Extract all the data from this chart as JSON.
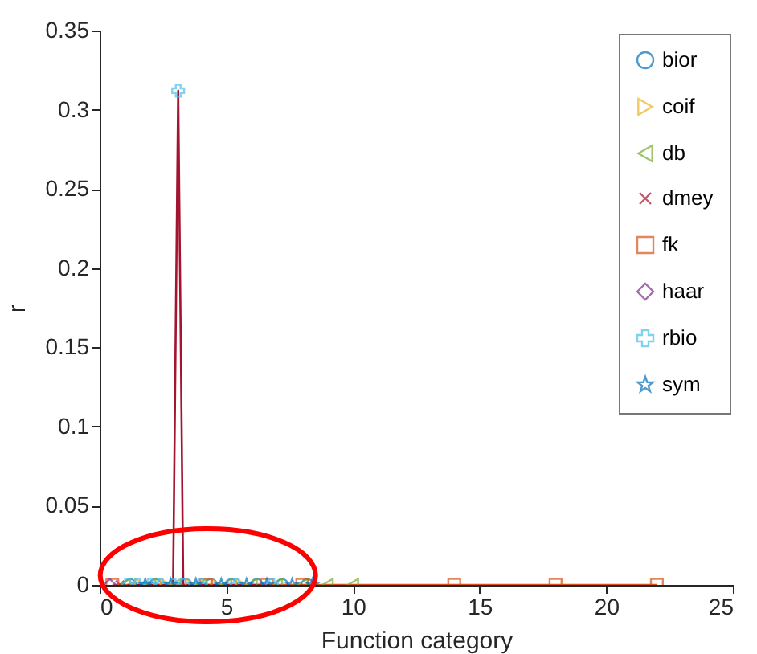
{
  "chart_data": {
    "type": "scatter",
    "xlabel": "Function category",
    "ylabel": "r",
    "xlim": [
      0,
      25
    ],
    "xticks": [
      0,
      5,
      10,
      15,
      20,
      25
    ],
    "ylim": [
      0,
      0.35
    ],
    "yticks": [
      0,
      0.05,
      0.1,
      0.15,
      0.2,
      0.25,
      0.3,
      0.35
    ],
    "grid": false,
    "legend": "top right",
    "series": [
      {
        "name": "bior",
        "color": "#0072bd",
        "marker": "circle",
        "x": [
          1.2,
          2.2,
          3.4,
          4.4,
          5.2,
          6.2,
          7.2,
          8.2
        ],
        "values": [
          0,
          0,
          0,
          0,
          0,
          0,
          0,
          0
        ]
      },
      {
        "name": "coif",
        "color": "#edb120",
        "marker": "triangle-right",
        "x": [
          1.6,
          2.6,
          3.6,
          4.6,
          5.6
        ],
        "values": [
          0,
          0,
          0,
          0,
          0
        ]
      },
      {
        "name": "db",
        "color": "#77ac30",
        "marker": "triangle-left",
        "x": [
          1,
          2,
          3,
          4,
          5,
          6,
          7,
          8,
          9,
          10
        ],
        "values": [
          0,
          0,
          0,
          0,
          0,
          0,
          0,
          0,
          0,
          0
        ]
      },
      {
        "name": "dmey",
        "color": "#a2142f",
        "marker": "x",
        "x": [
          0.8
        ],
        "values": [
          0
        ]
      },
      {
        "name": "fk",
        "type": "line",
        "color": "#d95319",
        "marker": "square",
        "x": [
          0.5,
          4.2,
          6.6,
          8,
          14,
          18,
          22
        ],
        "values": [
          0,
          0,
          0,
          0,
          0,
          0,
          0
        ]
      },
      {
        "name": "haar",
        "color": "#7e2f8e",
        "marker": "diamond",
        "x": [
          0.4
        ],
        "values": [
          0
        ]
      },
      {
        "type": "line",
        "color": "#a2142f",
        "marker": "none",
        "x": [
          1.1,
          1.5,
          2,
          2.4,
          2.9,
          3.1,
          3.3,
          4,
          5.4,
          6.8
        ],
        "values": [
          0,
          0,
          0,
          0,
          0,
          0.312,
          0,
          0,
          0,
          0
        ]
      },
      {
        "name": "rbio",
        "color": "#4dbeee",
        "marker": "cross",
        "x": [
          1.1,
          1.5,
          2,
          2.4,
          2.9,
          3.1,
          3.3,
          4,
          5.4,
          6.8
        ],
        "values": [
          0,
          0,
          0,
          0,
          0,
          0.312,
          0,
          0,
          0,
          0
        ]
      },
      {
        "name": "sym",
        "color": "#0072bd",
        "marker": "star",
        "x": [
          1.8,
          2.8,
          3.8,
          4.8,
          5.8,
          6.6,
          7.6,
          8.4
        ],
        "values": [
          0,
          0,
          0,
          0,
          0,
          0,
          0,
          0
        ]
      }
    ]
  }
}
